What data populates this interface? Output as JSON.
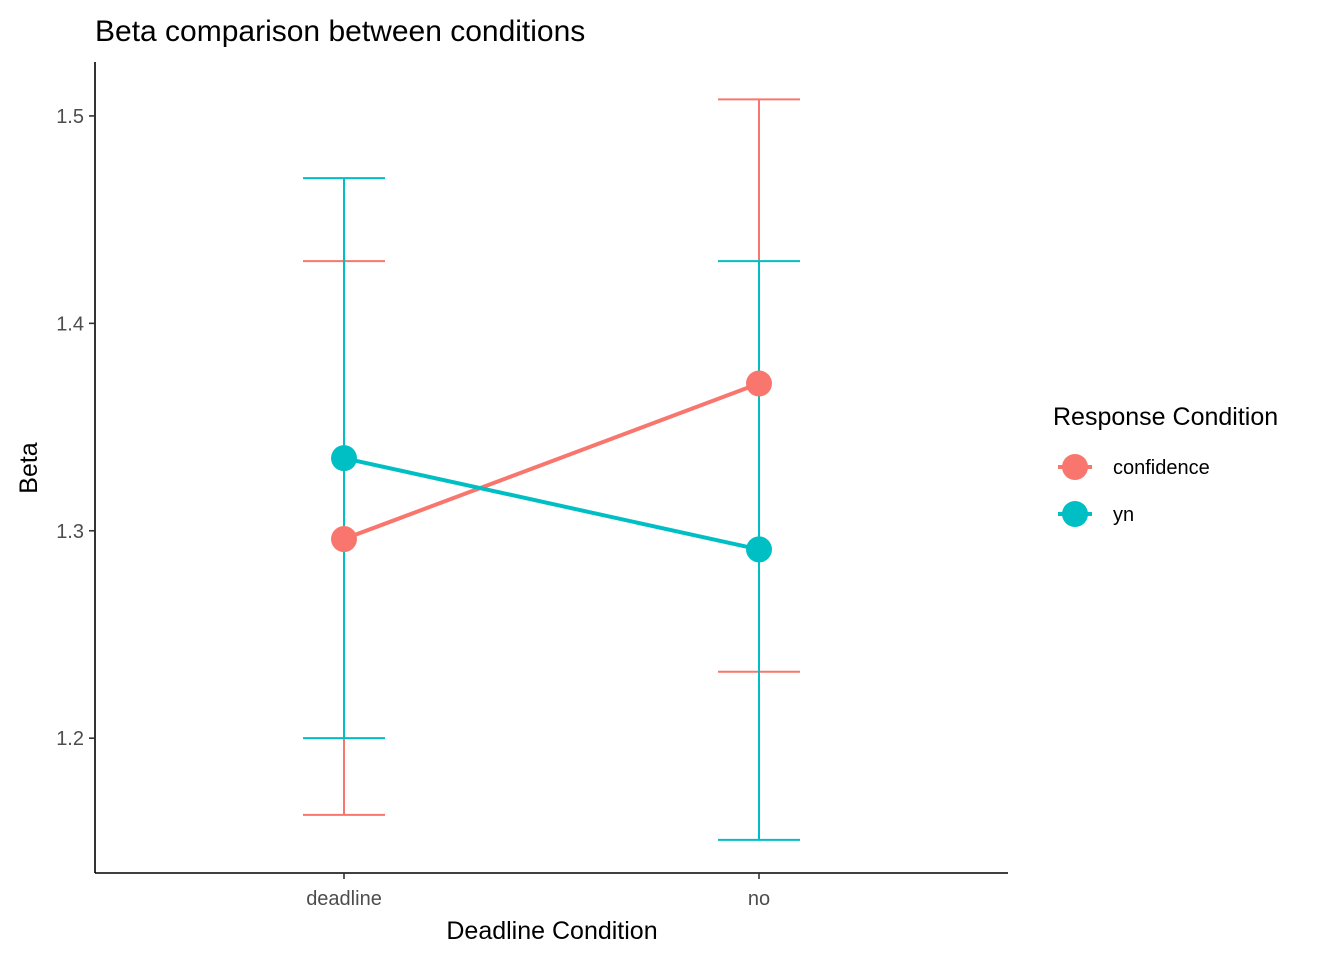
{
  "chart_data": {
    "type": "line",
    "title": "Beta comparison between conditions",
    "xlabel": "Deadline Condition",
    "ylabel": "Beta",
    "categories": [
      "deadline",
      "no"
    ],
    "y_ticks": [
      "1.2",
      "1.3",
      "1.4",
      "1.5"
    ],
    "y_tick_values": [
      1.2,
      1.3,
      1.4,
      1.5
    ],
    "ylim": [
      1.135,
      1.526
    ],
    "grid": false,
    "legend": {
      "title": "Response Condition",
      "placement": "right"
    },
    "series": [
      {
        "name": "confidence",
        "color": "#F8766D",
        "values": [
          1.296,
          1.371
        ],
        "lower": [
          1.163,
          1.232
        ],
        "upper": [
          1.43,
          1.508
        ]
      },
      {
        "name": "yn",
        "color": "#00BFC4",
        "values": [
          1.335,
          1.291
        ],
        "lower": [
          1.2,
          1.151
        ],
        "upper": [
          1.47,
          1.43
        ]
      }
    ]
  }
}
